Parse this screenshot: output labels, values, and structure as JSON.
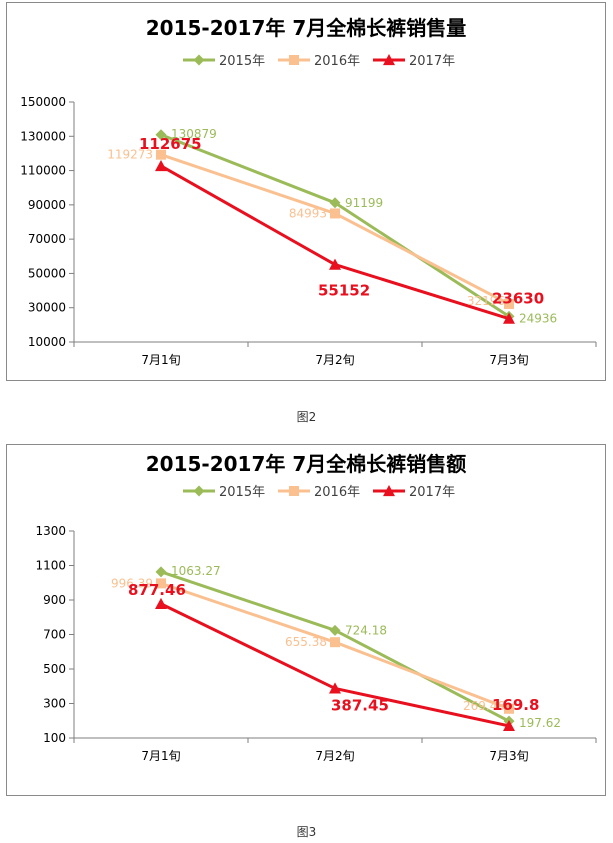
{
  "figures": [
    {
      "caption": "图2"
    },
    {
      "caption": "图3"
    }
  ],
  "chart_data": [
    {
      "type": "line",
      "title": "2015-2017年 7月全棉长裤销售量",
      "categories": [
        "7月1旬",
        "7月2旬",
        "7月3旬"
      ],
      "yticks": [
        "10000",
        "30000",
        "50000",
        "70000",
        "90000",
        "110000",
        "130000",
        "150000"
      ],
      "ylim": [
        10000,
        150000
      ],
      "grid": false,
      "legend_position": "top",
      "series": [
        {
          "name": "2015年",
          "values": [
            130879,
            91199,
            24936
          ],
          "labels": [
            "130879",
            "91199",
            "24936"
          ],
          "color": "#9BBB59",
          "marker": "diamond"
        },
        {
          "name": "2016年",
          "values": [
            119273,
            84993,
            32196
          ],
          "labels": [
            "119273",
            "84993",
            "32196"
          ],
          "color": "#FAC090",
          "marker": "square"
        },
        {
          "name": "2017年",
          "values": [
            112675,
            55152,
            23630
          ],
          "labels": [
            "112675",
            "55152",
            "23630"
          ],
          "color": "#E8101E",
          "marker": "triangle"
        }
      ]
    },
    {
      "type": "line",
      "title": "2015-2017年 7月全棉长裤销售额",
      "categories": [
        "7月1旬",
        "7月2旬",
        "7月3旬"
      ],
      "yticks": [
        "100",
        "300",
        "500",
        "700",
        "900",
        "1100",
        "1300"
      ],
      "ylim": [
        100,
        1300
      ],
      "grid": false,
      "legend_position": "top",
      "series": [
        {
          "name": "2015年",
          "values": [
            1063.27,
            724.18,
            197.62
          ],
          "labels": [
            "1063.27",
            "724.18",
            "197.62"
          ],
          "color": "#9BBB59",
          "marker": "diamond"
        },
        {
          "name": "2016年",
          "values": [
            996.39,
            655.38,
            269.46
          ],
          "labels": [
            "996.39",
            "655.38",
            "269.46"
          ],
          "color": "#FAC090",
          "marker": "square"
        },
        {
          "name": "2017年",
          "values": [
            877.46,
            387.45,
            169.8
          ],
          "labels": [
            "877.46",
            "387.45",
            "169.8"
          ],
          "color": "#E8101E",
          "marker": "triangle"
        }
      ]
    }
  ]
}
